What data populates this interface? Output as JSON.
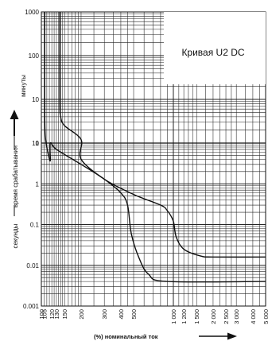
{
  "chart_data": {
    "type": "line",
    "title": "Кривая U2 DC",
    "xlabel": "(%)   номинальный ток",
    "ylabel": "время срабатывания",
    "ylabel_minutes": "минуты",
    "ylabel_seconds": "секунды",
    "x_scale": "log",
    "xlim": [
      100,
      5000
    ],
    "x_ticks": [
      "100",
      "105",
      "120",
      "130",
      "150",
      "200",
      "300",
      "400",
      "500",
      "1 000",
      "1 200",
      "1 500",
      "2 000",
      "2 500",
      "3 000",
      "4 000",
      "5 000"
    ],
    "x_tick_values": [
      100,
      105,
      120,
      130,
      150,
      200,
      300,
      400,
      500,
      1000,
      1200,
      1500,
      2000,
      2500,
      3000,
      4000,
      5000
    ],
    "minutes_axis": {
      "scale": "log",
      "ylim": [
        1,
        1000
      ],
      "tick_labels": [
        "1000",
        "100",
        "10",
        "1"
      ],
      "tick_values": [
        1000,
        100,
        10,
        1
      ]
    },
    "seconds_axis": {
      "scale": "log",
      "ylim": [
        0.001,
        10
      ],
      "tick_labels": [
        "10",
        "1",
        "0.1",
        "0.01",
        "0.001"
      ],
      "tick_values": [
        10,
        1,
        0.1,
        0.01,
        0.001
      ]
    },
    "grid": true,
    "series": [
      {
        "role": "upper-bound",
        "points_minutes": [
          [
            138,
            1000
          ],
          [
            138,
            10
          ],
          [
            140,
            4
          ],
          [
            150,
            2.5
          ],
          [
            200,
            1.2
          ]
        ],
        "points_seconds": [
          [
            200,
            4
          ],
          [
            300,
            1.3
          ],
          [
            500,
            0.55
          ],
          [
            800,
            0.3
          ],
          [
            900,
            0.22
          ],
          [
            1000,
            0.12
          ],
          [
            1050,
            0.05
          ],
          [
            1200,
            0.025
          ],
          [
            1600,
            0.017
          ],
          [
            2000,
            0.016
          ],
          [
            5000,
            0.016
          ]
        ]
      },
      {
        "role": "lower-bound",
        "points_minutes": [
          [
            106,
            1000
          ],
          [
            106,
            10
          ],
          [
            107,
            1.5
          ],
          [
            113,
            0.55
          ],
          [
            117,
            0.4
          ]
        ],
        "points_seconds": [
          [
            117,
            10
          ],
          [
            130,
            7
          ],
          [
            200,
            3
          ],
          [
            300,
            1.3
          ],
          [
            400,
            0.6
          ],
          [
            450,
            0.3
          ],
          [
            480,
            0.06
          ],
          [
            550,
            0.015
          ],
          [
            650,
            0.006
          ],
          [
            900,
            0.004
          ],
          [
            5000,
            0.004
          ]
        ]
      }
    ]
  }
}
